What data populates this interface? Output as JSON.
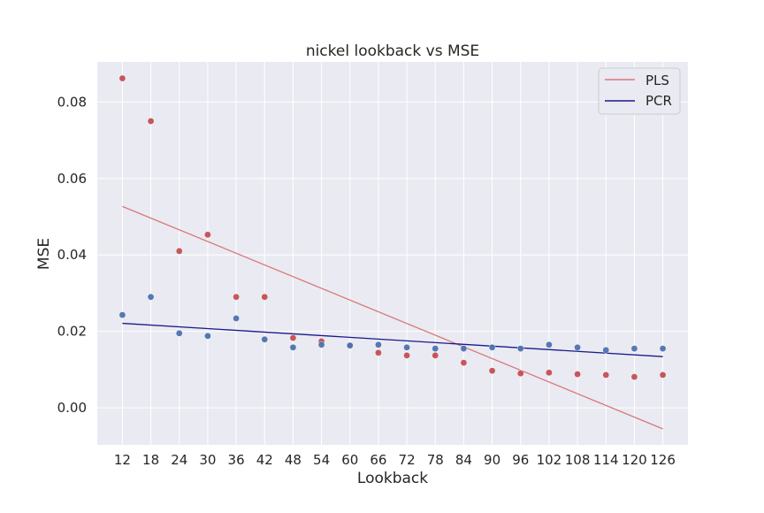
{
  "chart_data": {
    "type": "scatter",
    "title": "nickel lookback vs MSE",
    "xlabel": "Lookback",
    "ylabel": "MSE",
    "x": [
      12,
      18,
      24,
      30,
      36,
      42,
      48,
      54,
      60,
      66,
      72,
      78,
      84,
      90,
      96,
      102,
      108,
      114,
      120,
      126
    ],
    "x_ticks": [
      "12",
      "18",
      "24",
      "30",
      "36",
      "42",
      "48",
      "54",
      "60",
      "66",
      "72",
      "78",
      "84",
      "90",
      "96",
      "102",
      "108",
      "114",
      "120",
      "126"
    ],
    "y_ticks": [
      "0.00",
      "0.02",
      "0.04",
      "0.06",
      "0.08"
    ],
    "y_tick_values": [
      0.0,
      0.02,
      0.04,
      0.06,
      0.08
    ],
    "xlim": [
      6.7,
      131.3
    ],
    "ylim": [
      -0.0097,
      0.0905
    ],
    "grid": true,
    "legend_position": "top-right",
    "legend": [
      "PLS",
      "PCR"
    ],
    "series": [
      {
        "name": "PLS",
        "color": "#c44e52",
        "points": [
          0.0862,
          0.075,
          0.041,
          0.0453,
          0.029,
          0.029,
          0.0183,
          0.0174,
          0.0163,
          0.0144,
          0.0137,
          0.0137,
          0.0118,
          0.0097,
          0.009,
          0.0092,
          0.0088,
          0.0086,
          0.0081,
          0.0086
        ],
        "trend": {
          "x": [
            12,
            126
          ],
          "y": [
            0.0527,
            -0.0055
          ],
          "color": "#d9777a"
        }
      },
      {
        "name": "PCR",
        "color": "#4c72b0",
        "points": [
          0.0243,
          0.029,
          0.0195,
          0.0188,
          0.0234,
          0.0179,
          0.0158,
          0.0165,
          0.0163,
          0.0165,
          0.0158,
          0.0155,
          0.0155,
          0.0158,
          0.0155,
          0.0165,
          0.0158,
          0.0151,
          0.0155,
          0.0155
        ],
        "trend": {
          "x": [
            12,
            126
          ],
          "y": [
            0.0221,
            0.0134
          ],
          "color": "#1a1a8c"
        }
      }
    ]
  },
  "colors": {
    "plot_background": "#eaeaf2",
    "grid": "#ffffff",
    "text": "#262626"
  }
}
